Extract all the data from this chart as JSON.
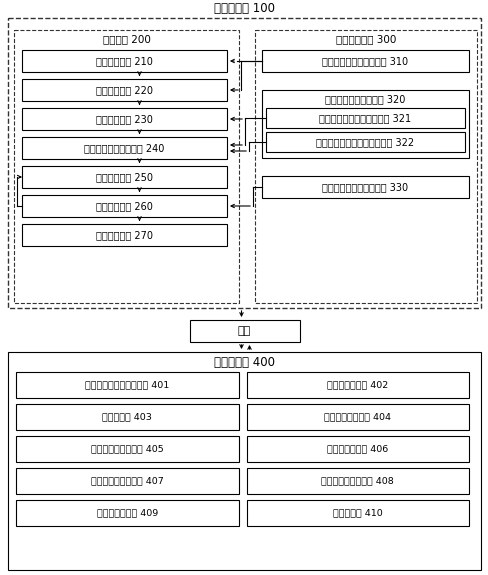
{
  "title": "仿真控制机 100",
  "label_200": "仿真程序 200",
  "label_300": "编队规划文件 300",
  "label_400": "飞行模拟器 400",
  "label_wangka": "网卡",
  "boxes_left": [
    "数据解析模块 210",
    "数据接收模块 220",
    "数据发送模块 230",
    "仿真飞机性能模拟模块 240",
    "数据处理模块 250",
    "综合管理模块 260",
    "行为控制模块 270"
  ],
  "box_310": "真实飞机飞行参数数据率 310",
  "box_320": "仿真飞机编队飞行方案 320",
  "box_321": "仿真飞机模拟方案总数据表 321",
  "box_322": "仿真飞机模拟方案实施数据表 322",
  "box_330": "真实飞机设计参数数据率 330",
  "boxes_simulator": [
    [
      "仿真飞机性能模拟分系统 401",
      "座舱模拟分系统 402"
    ],
    [
      "视景分系统 403",
      "教员控制台分系统 404"
    ],
    [
      "计算机和网络分系统 405",
      "动感模拟分系统 406"
    ],
    [
      "航空电子模拟分系统 407",
      "综合环境模拟分系统 408"
    ],
    [
      "声音模拟分系统 409",
      "辅助分系统 410"
    ]
  ]
}
